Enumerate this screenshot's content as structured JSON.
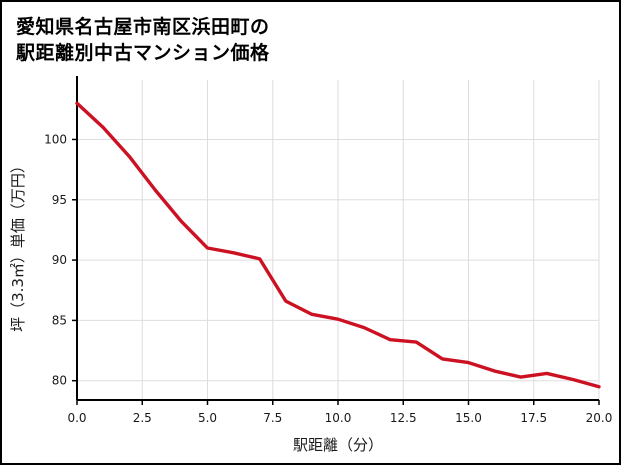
{
  "page": {
    "title_line1": "愛知県名古屋市南区浜田町の",
    "title_line2": "駅距離別中古マンション価格"
  },
  "chart_data": {
    "type": "line",
    "title": "愛知県名古屋市南区浜田町の駅距離別中古マンション価格",
    "xlabel": "駅距離（分）",
    "ylabel": "坪（3.3㎡）単価（万円）",
    "x": [
      0,
      1,
      2,
      3,
      4,
      5,
      6,
      7,
      8,
      9,
      10,
      11,
      12,
      13,
      14,
      15,
      16,
      17,
      18,
      19,
      20
    ],
    "y": [
      103.0,
      101.0,
      98.6,
      95.8,
      93.2,
      91.0,
      90.6,
      90.1,
      86.6,
      85.5,
      85.1,
      84.4,
      83.4,
      83.2,
      81.8,
      81.5,
      80.8,
      80.3,
      80.6,
      80.1,
      79.5
    ],
    "xlim": [
      0,
      20
    ],
    "ylim": [
      78.4,
      104.1
    ],
    "xticks": [
      0,
      2.5,
      5,
      7.5,
      10,
      12.5,
      15,
      17.5,
      20
    ],
    "xtick_labels": [
      "0.0",
      "2.5",
      "5.0",
      "7.5",
      "10.0",
      "12.5",
      "15.0",
      "17.5",
      "20.0"
    ],
    "yticks": [
      80,
      85,
      90,
      95,
      100
    ],
    "ytick_labels": [
      "80",
      "85",
      "90",
      "95",
      "100"
    ],
    "grid": true,
    "legend": false,
    "line_color": "#cc1122",
    "line_width": 3.4,
    "grid_color": "#dedede",
    "axis_color": "#000000",
    "background": "#ffffff"
  }
}
